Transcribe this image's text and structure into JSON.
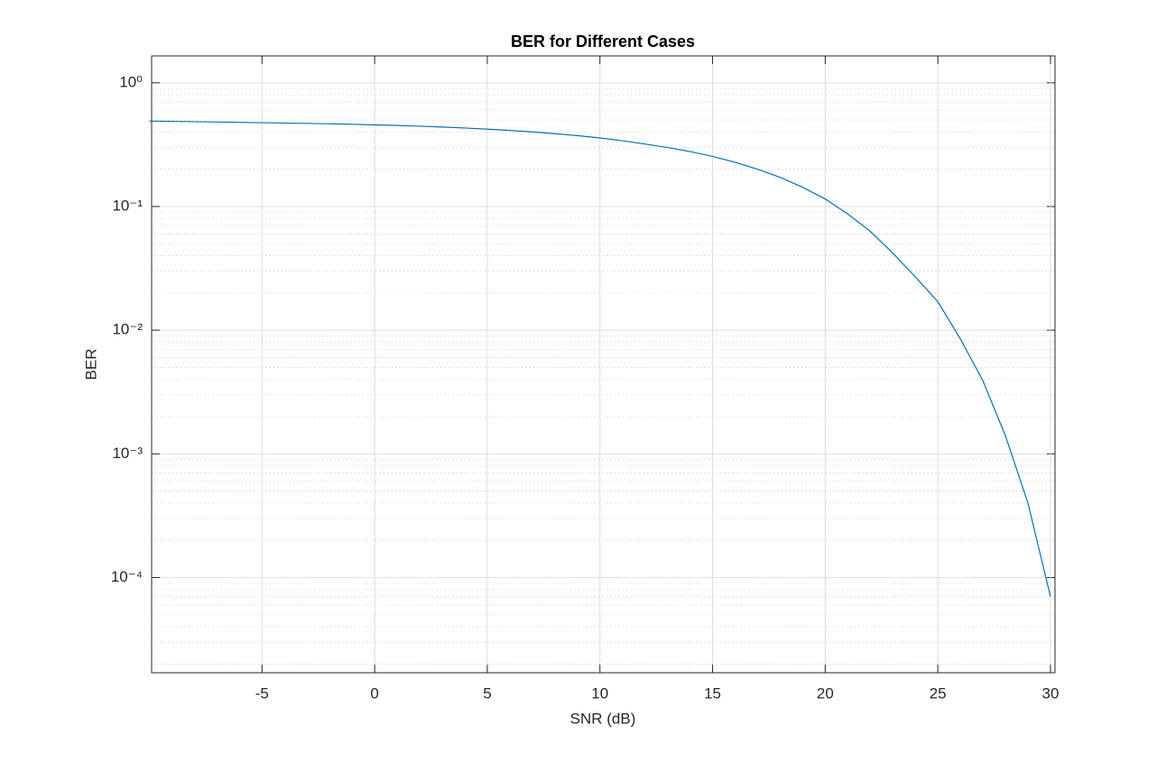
{
  "chart_data": {
    "type": "line",
    "title": "BER for Different Cases",
    "x_label": "SNR (dB)",
    "y_label": "BER",
    "log_y": true,
    "grid": true,
    "minor_grid": true,
    "xlim": [
      -9.9,
      30.2
    ],
    "xticks": [
      -5,
      0,
      5,
      10,
      15,
      20,
      25,
      30
    ],
    "ylim": [
      1.7e-05,
      1.65
    ],
    "yticks": [
      {
        "value": 0.0001,
        "label": "10⁻⁴"
      },
      {
        "value": 0.001,
        "label": "10⁻³"
      },
      {
        "value": 0.01,
        "label": "10⁻²"
      },
      {
        "value": 0.1,
        "label": "10⁻¹"
      },
      {
        "value": 1,
        "label": "10⁰"
      }
    ],
    "x": [
      -10,
      -9,
      -8,
      -7,
      -6,
      -5,
      -4,
      -3,
      -2,
      -1,
      0,
      1,
      2,
      3,
      4,
      5,
      6,
      7,
      8,
      9,
      10,
      11,
      12,
      13,
      14,
      15,
      16,
      17,
      18,
      19,
      20,
      21,
      22,
      23,
      24,
      25,
      26,
      27,
      28,
      29,
      30
    ],
    "series": [
      {
        "color": "#0072bd",
        "values": [
          0.49,
          0.488,
          0.485,
          0.482,
          0.479,
          0.476,
          0.473,
          0.47,
          0.466,
          0.462,
          0.457,
          0.452,
          0.446,
          0.439,
          0.431,
          0.422,
          0.412,
          0.401,
          0.388,
          0.374,
          0.358,
          0.34,
          0.32,
          0.3,
          0.278,
          0.254,
          0.228,
          0.2,
          0.172,
          0.143,
          0.115,
          0.087,
          0.063,
          0.042,
          0.027,
          0.017,
          0.0085,
          0.0039,
          0.0014,
          0.0004,
          7e-05
        ]
      }
    ]
  }
}
